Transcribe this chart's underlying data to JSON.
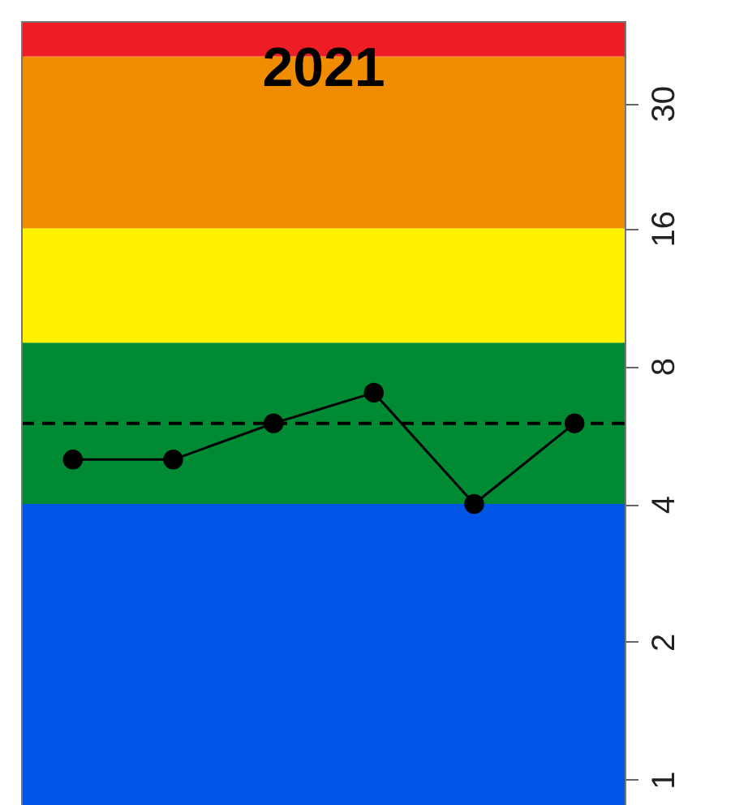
{
  "chart_data": {
    "type": "line",
    "title": "2021",
    "categories": [
      null,
      null,
      null,
      null,
      null,
      null
    ],
    "series": [
      {
        "color": "#000000",
        "values": [
          5,
          5,
          6,
          7,
          4,
          6
        ]
      }
    ],
    "log": true,
    "ylim": [
      0.88,
      45
    ],
    "yticks": [
      1,
      2,
      4,
      8,
      16,
      30
    ],
    "grid": false,
    "marker": "circle",
    "line_style": "solid",
    "tick_labels": "y",
    "bands": [
      {
        "axis": "y",
        "from": 0.88,
        "to": 4,
        "color": "#0055e6"
      },
      {
        "axis": "y",
        "from": 4,
        "to": 9,
        "color": "#008a33"
      },
      {
        "axis": "y",
        "from": 9,
        "to": 16,
        "color": "#fff200"
      },
      {
        "axis": "y",
        "from": 16,
        "to": 38,
        "color": "#f08c00"
      },
      {
        "axis": "y",
        "from": 38,
        "to": 45,
        "color": "#ee1c25"
      }
    ],
    "ref_lines": [
      {
        "axis": "y",
        "value": 6,
        "color": "#000000",
        "line_style": "dashed"
      }
    ]
  }
}
